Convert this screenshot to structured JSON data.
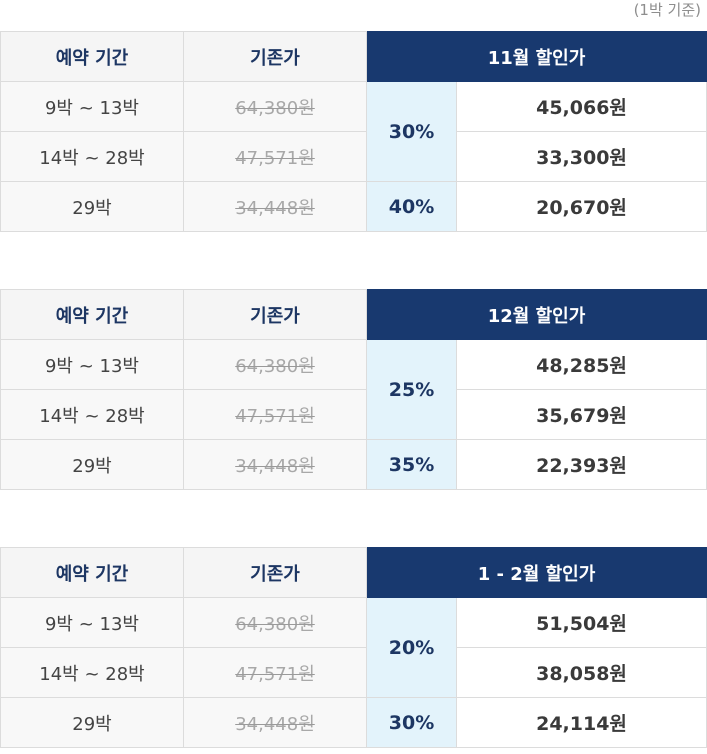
{
  "note": "(1박 기준)",
  "tables": [
    {
      "headers": {
        "period": "예약 기간",
        "original": "기존가",
        "month": "11월 할인가"
      },
      "rows": [
        {
          "period": "9박 ~ 13박",
          "original": "64,380원",
          "price": "45,066원"
        },
        {
          "period": "14박 ~ 28박",
          "original": "47,571원",
          "price": "33,300원"
        },
        {
          "period": "29박",
          "original": "34,448원",
          "price": "20,670원"
        }
      ],
      "discounts": [
        "30%",
        "40%"
      ]
    },
    {
      "headers": {
        "period": "예약 기간",
        "original": "기존가",
        "month": "12월 할인가"
      },
      "rows": [
        {
          "period": "9박 ~ 13박",
          "original": "64,380원",
          "price": "48,285원"
        },
        {
          "period": "14박 ~ 28박",
          "original": "47,571원",
          "price": "35,679원"
        },
        {
          "period": "29박",
          "original": "34,448원",
          "price": "22,393원"
        }
      ],
      "discounts": [
        "25%",
        "35%"
      ]
    },
    {
      "headers": {
        "period": "예약 기간",
        "original": "기존가",
        "month": "1 - 2월 할인가"
      },
      "rows": [
        {
          "period": "9박 ~ 13박",
          "original": "64,380원",
          "price": "51,504원"
        },
        {
          "period": "14박 ~ 28박",
          "original": "47,571원",
          "price": "38,058원"
        },
        {
          "period": "29박",
          "original": "34,448원",
          "price": "24,114원"
        }
      ],
      "discounts": [
        "20%",
        "30%"
      ]
    }
  ]
}
